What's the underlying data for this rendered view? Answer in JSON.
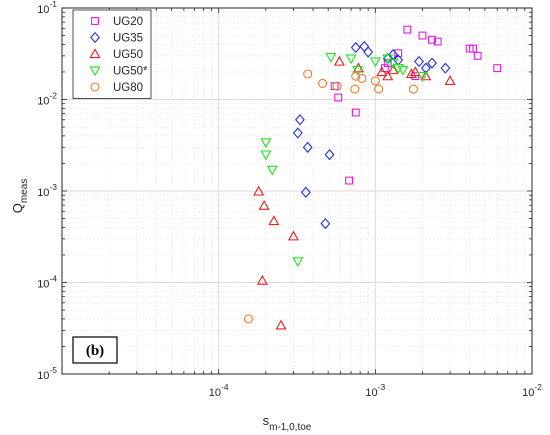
{
  "chart_data": {
    "type": "scatter",
    "x_scale": "log",
    "y_scale": "log",
    "xlim": [
      1e-05,
      0.01
    ],
    "ylim": [
      1e-05,
      0.1
    ],
    "x_ticks": [
      {
        "value": 0.0001,
        "base": "10",
        "exp": "-4"
      },
      {
        "value": 0.001,
        "base": "10",
        "exp": "-3"
      },
      {
        "value": 0.01,
        "base": "10",
        "exp": "-2"
      }
    ],
    "y_ticks": [
      {
        "value": 1e-05,
        "base": "10",
        "exp": "-5"
      },
      {
        "value": 0.0001,
        "base": "10",
        "exp": "-4"
      },
      {
        "value": 0.001,
        "base": "10",
        "exp": "-3"
      },
      {
        "value": 0.01,
        "base": "10",
        "exp": "-2"
      },
      {
        "value": 0.1,
        "base": "10",
        "exp": "-1"
      }
    ],
    "xlabel": {
      "main": "s",
      "sub": "m-1,0,toe"
    },
    "ylabel": {
      "main": "Q",
      "sub": "meas"
    },
    "grid": true,
    "legend_position": "top-left",
    "panel_label": "(b)",
    "series": [
      {
        "name": "UG20",
        "marker": "square",
        "color": "#e617e6",
        "points": [
          [
            0.00055,
            0.014
          ],
          [
            0.00058,
            0.0105
          ],
          [
            0.00075,
            0.0072
          ],
          [
            0.00068,
            0.0013
          ],
          [
            0.00115,
            0.022
          ],
          [
            0.0012,
            0.025
          ],
          [
            0.0014,
            0.032
          ],
          [
            0.0016,
            0.058
          ],
          [
            0.0018,
            0.018
          ],
          [
            0.002,
            0.05
          ],
          [
            0.0023,
            0.045
          ],
          [
            0.0025,
            0.043
          ],
          [
            0.004,
            0.036
          ],
          [
            0.0042,
            0.036
          ],
          [
            0.0045,
            0.03
          ],
          [
            0.006,
            0.022
          ]
        ]
      },
      {
        "name": "UG35",
        "marker": "diamond",
        "color": "#1f2ee6",
        "points": [
          [
            0.00032,
            0.0043
          ],
          [
            0.00033,
            0.006
          ],
          [
            0.00037,
            0.003
          ],
          [
            0.00036,
            0.00097
          ],
          [
            0.00048,
            0.00044
          ],
          [
            0.00051,
            0.0025
          ],
          [
            0.00075,
            0.037
          ],
          [
            0.00085,
            0.038
          ],
          [
            0.0009,
            0.033
          ],
          [
            0.0012,
            0.028
          ],
          [
            0.0013,
            0.031
          ],
          [
            0.0014,
            0.027
          ],
          [
            0.0019,
            0.026
          ],
          [
            0.0021,
            0.022
          ],
          [
            0.0023,
            0.025
          ],
          [
            0.0028,
            0.022
          ]
        ]
      },
      {
        "name": "UG50",
        "marker": "triangle-up",
        "color": "#e61e1e",
        "points": [
          [
            0.00018,
            0.00099
          ],
          [
            0.000195,
            0.00069
          ],
          [
            0.000225,
            0.00047
          ],
          [
            0.0003,
            0.00032
          ],
          [
            0.00019,
            0.000105
          ],
          [
            0.00025,
            3.4e-05
          ],
          [
            0.00059,
            0.026
          ],
          [
            0.00078,
            0.022
          ],
          [
            0.0011,
            0.02
          ],
          [
            0.0012,
            0.018
          ],
          [
            0.0013,
            0.021
          ],
          [
            0.0017,
            0.019
          ],
          [
            0.0018,
            0.02
          ],
          [
            0.0021,
            0.018
          ],
          [
            0.003,
            0.016
          ]
        ]
      },
      {
        "name": "UG50*",
        "marker": "triangle-down",
        "color": "#1fe61f",
        "points": [
          [
            0.0002,
            0.0034
          ],
          [
            0.0002,
            0.0025
          ],
          [
            0.00022,
            0.0017
          ],
          [
            0.00032,
            0.00017
          ],
          [
            0.00052,
            0.029
          ],
          [
            0.0007,
            0.028
          ],
          [
            0.00077,
            0.021
          ],
          [
            0.001,
            0.026
          ],
          [
            0.0012,
            0.028
          ],
          [
            0.0013,
            0.025
          ],
          [
            0.0014,
            0.022
          ],
          [
            0.0015,
            0.021
          ],
          [
            0.002,
            0.018
          ]
        ]
      },
      {
        "name": "UG80",
        "marker": "circle",
        "color": "#f07a2e",
        "points": [
          [
            0.000155,
            4e-05
          ],
          [
            0.00037,
            0.019
          ],
          [
            0.00046,
            0.015
          ],
          [
            0.00057,
            0.014
          ],
          [
            0.00074,
            0.013
          ],
          [
            0.00075,
            0.018
          ],
          [
            0.00082,
            0.017
          ],
          [
            0.001,
            0.016
          ],
          [
            0.00105,
            0.013
          ],
          [
            0.00175,
            0.013
          ]
        ]
      }
    ]
  }
}
